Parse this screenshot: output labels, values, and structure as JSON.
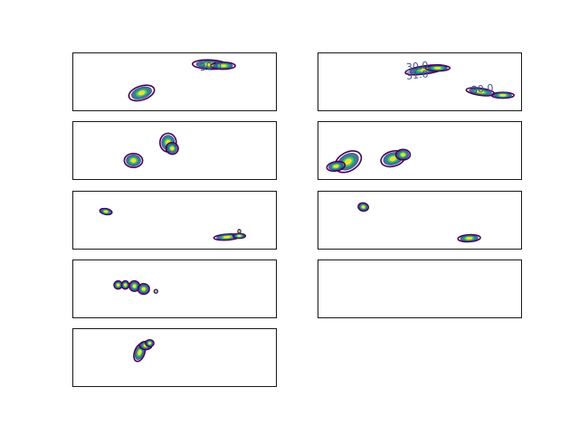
{
  "figure": {
    "background": "#ffffff",
    "colormap": [
      "#440154",
      "#3b528b",
      "#21918c",
      "#5ec962",
      "#fde725"
    ]
  },
  "chart_data": [
    {
      "type": "contour",
      "grid": false,
      "axes_visible": false,
      "blobs": [
        {
          "x": 0.34,
          "y": 0.7,
          "rx": 0.065,
          "ry": 0.12,
          "rot": -18
        },
        {
          "x": 0.675,
          "y": 0.21,
          "rx": 0.085,
          "ry": 0.08,
          "rot": 2
        },
        {
          "x": 0.74,
          "y": 0.23,
          "rx": 0.06,
          "ry": 0.06,
          "rot": 0
        }
      ],
      "contour_labels": [
        {
          "text": "30.0",
          "x": 0.68,
          "y": 0.25
        }
      ]
    },
    {
      "type": "contour",
      "grid": false,
      "axes_visible": false,
      "blobs": [
        {
          "x": 0.53,
          "y": 0.3,
          "rx": 0.1,
          "ry": 0.07,
          "rot": -8
        },
        {
          "x": 0.59,
          "y": 0.27,
          "rx": 0.06,
          "ry": 0.05,
          "rot": 0
        },
        {
          "x": 0.8,
          "y": 0.68,
          "rx": 0.07,
          "ry": 0.06,
          "rot": 8
        },
        {
          "x": 0.91,
          "y": 0.74,
          "rx": 0.055,
          "ry": 0.05,
          "rot": 0
        }
      ],
      "contour_labels": [
        {
          "text": "30.0",
          "x": 0.49,
          "y": 0.25
        },
        {
          "text": "31.0",
          "x": 0.49,
          "y": 0.4
        },
        {
          "text": "30.0",
          "x": 0.81,
          "y": 0.64
        }
      ]
    },
    {
      "type": "contour",
      "grid": false,
      "axes_visible": false,
      "blobs": [
        {
          "x": 0.47,
          "y": 0.37,
          "rx": 0.04,
          "ry": 0.16,
          "rot": 0
        },
        {
          "x": 0.49,
          "y": 0.47,
          "rx": 0.03,
          "ry": 0.1,
          "rot": 20
        },
        {
          "x": 0.3,
          "y": 0.68,
          "rx": 0.045,
          "ry": 0.12,
          "rot": 0
        }
      ],
      "contour_labels": []
    },
    {
      "type": "contour",
      "grid": false,
      "axes_visible": false,
      "blobs": [
        {
          "x": 0.15,
          "y": 0.7,
          "rx": 0.07,
          "ry": 0.16,
          "rot": -30
        },
        {
          "x": 0.09,
          "y": 0.78,
          "rx": 0.045,
          "ry": 0.08,
          "rot": -10
        },
        {
          "x": 0.37,
          "y": 0.65,
          "rx": 0.06,
          "ry": 0.13,
          "rot": -15
        },
        {
          "x": 0.42,
          "y": 0.58,
          "rx": 0.035,
          "ry": 0.09,
          "rot": 0
        }
      ],
      "contour_labels": []
    },
    {
      "type": "contour",
      "grid": false,
      "axes_visible": false,
      "blobs": [
        {
          "x": 0.165,
          "y": 0.36,
          "rx": 0.03,
          "ry": 0.05,
          "rot": 10
        },
        {
          "x": 0.76,
          "y": 0.8,
          "rx": 0.065,
          "ry": 0.05,
          "rot": -4
        },
        {
          "x": 0.82,
          "y": 0.78,
          "rx": 0.03,
          "ry": 0.04,
          "rot": 0
        },
        {
          "x": 0.82,
          "y": 0.7,
          "rx": 0.006,
          "ry": 0.03,
          "rot": 0
        }
      ],
      "contour_labels": []
    },
    {
      "type": "contour",
      "grid": false,
      "axes_visible": false,
      "blobs": [
        {
          "x": 0.225,
          "y": 0.28,
          "rx": 0.025,
          "ry": 0.07,
          "rot": 10
        },
        {
          "x": 0.745,
          "y": 0.82,
          "rx": 0.055,
          "ry": 0.06,
          "rot": -3
        }
      ],
      "contour_labels": []
    },
    {
      "type": "contour",
      "grid": false,
      "axes_visible": false,
      "blobs": [
        {
          "x": 0.225,
          "y": 0.44,
          "rx": 0.02,
          "ry": 0.07,
          "rot": 0
        },
        {
          "x": 0.26,
          "y": 0.44,
          "rx": 0.018,
          "ry": 0.07,
          "rot": 0
        },
        {
          "x": 0.305,
          "y": 0.46,
          "rx": 0.025,
          "ry": 0.09,
          "rot": 0
        },
        {
          "x": 0.35,
          "y": 0.51,
          "rx": 0.028,
          "ry": 0.09,
          "rot": 0
        },
        {
          "x": 0.41,
          "y": 0.55,
          "rx": 0.008,
          "ry": 0.03,
          "rot": 0
        }
      ],
      "contour_labels": []
    },
    {
      "type": "contour",
      "grid": false,
      "axes_visible": false,
      "blobs": [],
      "contour_labels": []
    },
    {
      "type": "contour",
      "grid": false,
      "axes_visible": false,
      "blobs": [
        {
          "x": 0.33,
          "y": 0.42,
          "rx": 0.025,
          "ry": 0.16,
          "rot": 20
        },
        {
          "x": 0.36,
          "y": 0.3,
          "rx": 0.03,
          "ry": 0.07,
          "rot": 0
        },
        {
          "x": 0.38,
          "y": 0.26,
          "rx": 0.02,
          "ry": 0.06,
          "rot": 0
        }
      ],
      "contour_labels": []
    }
  ]
}
